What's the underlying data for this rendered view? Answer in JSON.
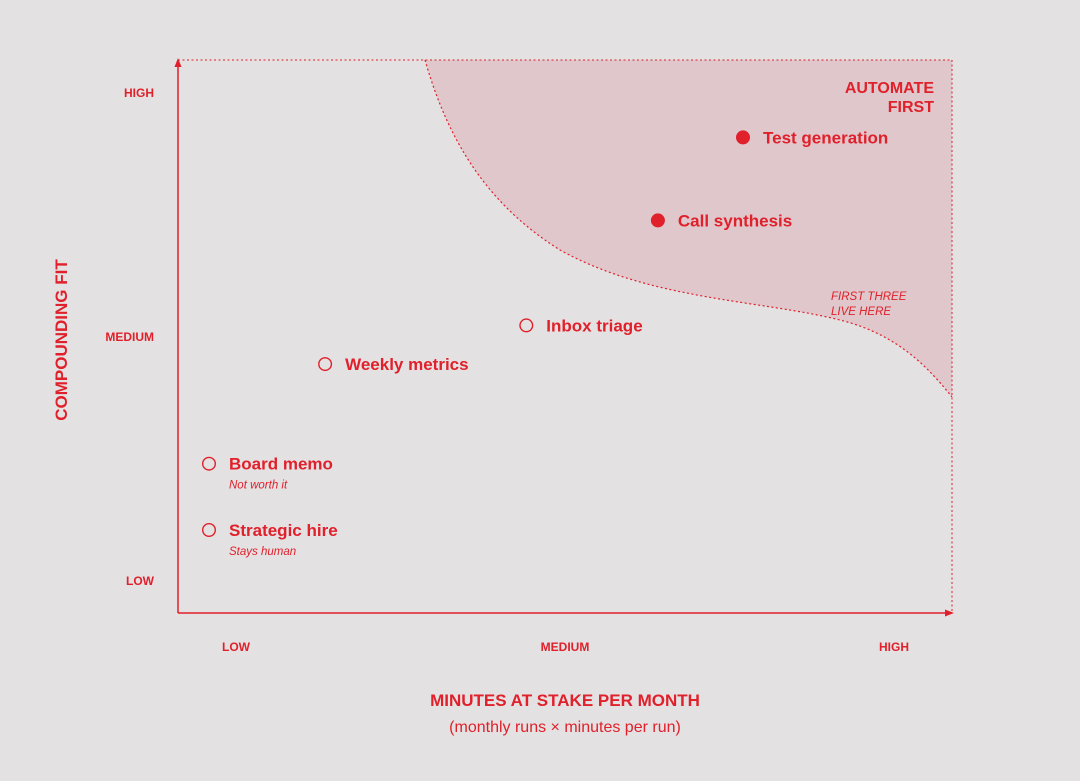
{
  "colors": {
    "background": "#e4e1e3",
    "accent": "#e0202a",
    "zone_fill": "#dfc7cb"
  },
  "chart_data": {
    "type": "scatter",
    "xlabel": "MINUTES AT STAKE PER MONTH",
    "xlabel_sub": "(monthly runs × minutes per run)",
    "ylabel": "COMPOUNDING FIT",
    "x_ticks": [
      "LOW",
      "MEDIUM",
      "HIGH"
    ],
    "y_ticks": [
      "LOW",
      "MEDIUM",
      "HIGH"
    ],
    "xlim": [
      0,
      1
    ],
    "ylim": [
      0,
      1
    ],
    "grid": false,
    "zone": {
      "title_lines": [
        "AUTOMATE",
        "FIRST"
      ],
      "note_lines": [
        "FIRST THREE",
        "LIVE HERE"
      ]
    },
    "points": [
      {
        "label": "Test generation",
        "x": 0.73,
        "y": 0.86,
        "filled": true,
        "note": ""
      },
      {
        "label": "Call synthesis",
        "x": 0.62,
        "y": 0.71,
        "filled": true,
        "note": ""
      },
      {
        "label": "Inbox triage",
        "x": 0.45,
        "y": 0.52,
        "filled": false,
        "note": ""
      },
      {
        "label": "Weekly metrics",
        "x": 0.19,
        "y": 0.45,
        "filled": false,
        "note": ""
      },
      {
        "label": "Board memo",
        "x": 0.04,
        "y": 0.27,
        "filled": false,
        "note": "Not worth it"
      },
      {
        "label": "Strategic hire",
        "x": 0.04,
        "y": 0.15,
        "filled": false,
        "note": "Stays human"
      }
    ]
  }
}
